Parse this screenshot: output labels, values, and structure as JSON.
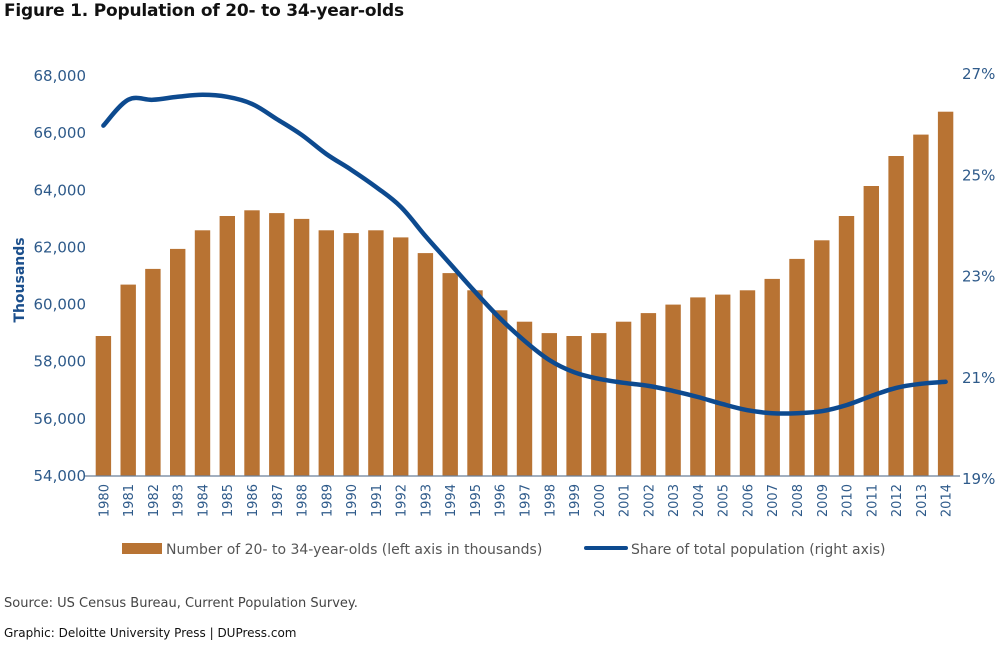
{
  "title": "Figure 1. Population of 20- to 34-year-olds",
  "source": "Source: US Census Bureau, Current Population Survey.",
  "credit": "Graphic: Deloitte University Press  |  DUPress.com",
  "colors": {
    "bar": "#b87333",
    "line": "#0d4a8f",
    "axis_text": "#2e5a8a",
    "axis_line": "#6b7f99"
  },
  "chart_data": {
    "type": "bar",
    "title": "Figure 1. Population of 20- to 34-year-olds",
    "xlabel": "",
    "ylabel": "Thousands",
    "y2label": "",
    "ylim": [
      54000,
      68000
    ],
    "y2lim": [
      19,
      27
    ],
    "grid": false,
    "legend_position": "bottom",
    "left_ticks": [
      "54,000",
      "56,000",
      "58,000",
      "60,000",
      "62,000",
      "64,000",
      "66,000",
      "68,000"
    ],
    "left_tick_values": [
      54000,
      56000,
      58000,
      60000,
      62000,
      64000,
      66000,
      68000
    ],
    "right_ticks": [
      "19%",
      "21%",
      "23%",
      "25%",
      "27%"
    ],
    "right_tick_values": [
      19,
      21,
      23,
      25,
      27
    ],
    "categories": [
      "1980",
      "1981",
      "1982",
      "1983",
      "1984",
      "1985",
      "1986",
      "1987",
      "1988",
      "1989",
      "1990",
      "1991",
      "1992",
      "1993",
      "1994",
      "1995",
      "1996",
      "1997",
      "1998",
      "1999",
      "2000",
      "2001",
      "2002",
      "2003",
      "2004",
      "2005",
      "2006",
      "2007",
      "2008",
      "2009",
      "2010",
      "2011",
      "2012",
      "2013",
      "2014"
    ],
    "series": [
      {
        "name": "Number of 20- to 34-year-olds (left axis in thousands)",
        "type": "bar",
        "axis": "left",
        "values": [
          58900,
          60700,
          61250,
          61950,
          62600,
          63100,
          63300,
          63200,
          63000,
          62600,
          62500,
          62600,
          62350,
          61800,
          61100,
          60500,
          59800,
          59400,
          59000,
          58900,
          59000,
          59400,
          59700,
          60000,
          60250,
          60350,
          60500,
          60900,
          61600,
          62250,
          63100,
          64150,
          65200,
          65950,
          66750
        ]
      },
      {
        "name": "Share of total population (right axis)",
        "type": "line",
        "axis": "right",
        "values": [
          25.96,
          26.47,
          26.47,
          26.53,
          26.57,
          26.53,
          26.39,
          26.09,
          25.78,
          25.4,
          25.09,
          24.75,
          24.36,
          23.78,
          23.23,
          22.68,
          22.16,
          21.71,
          21.33,
          21.09,
          20.96,
          20.88,
          20.82,
          20.72,
          20.6,
          20.46,
          20.34,
          20.28,
          20.28,
          20.32,
          20.44,
          20.62,
          20.78,
          20.86,
          20.9
        ]
      }
    ]
  }
}
